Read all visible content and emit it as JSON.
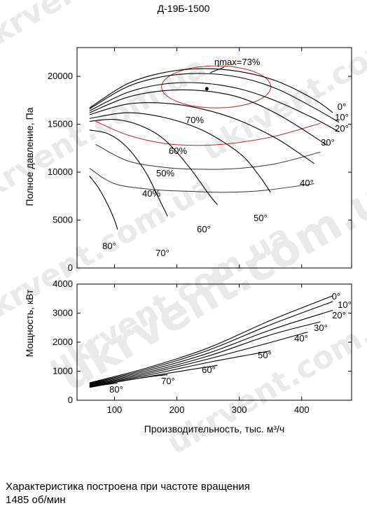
{
  "title": "Д-19Б-1500",
  "watermark": "ukrvent.com.ua",
  "footnote": {
    "line1": "Характеристика построена при частоте вращения",
    "line2": "1485 об/мин"
  },
  "chart_data": [
    {
      "type": "line",
      "panel": "pressure",
      "xlabel": "",
      "ylabel": "Полное давление, Па",
      "xlim": [
        40,
        480
      ],
      "ylim": [
        0,
        23000
      ],
      "yticks": [
        0,
        5000,
        10000,
        15000,
        20000
      ],
      "efficiency_label": "ηmax=73%",
      "efficiency_point": {
        "x": 248,
        "y": 18700
      },
      "series": [
        {
          "name": "0°",
          "x": [
            60,
            120,
            180,
            240,
            300,
            360,
            420,
            450
          ],
          "y": [
            16700,
            19200,
            20400,
            20800,
            20500,
            19500,
            17600,
            16200
          ]
        },
        {
          "name": "10°",
          "x": [
            60,
            120,
            180,
            240,
            300,
            360,
            420,
            460
          ],
          "y": [
            16600,
            18900,
            20000,
            20300,
            19900,
            18700,
            16700,
            15200
          ]
        },
        {
          "name": "20°",
          "x": [
            60,
            120,
            180,
            240,
            300,
            360,
            420,
            460
          ],
          "y": [
            16400,
            18300,
            19200,
            19300,
            18700,
            17400,
            15600,
            14200
          ]
        },
        {
          "name": "30°",
          "x": [
            60,
            120,
            180,
            240,
            300,
            360,
            420,
            440
          ],
          "y": [
            16200,
            17800,
            18500,
            18500,
            17800,
            16100,
            13700,
            12800
          ]
        },
        {
          "name": "40°",
          "x": [
            60,
            120,
            180,
            240,
            300,
            360,
            400,
            420
          ],
          "y": [
            16000,
            17100,
            17200,
            16600,
            15400,
            13500,
            11800,
            10900
          ]
        },
        {
          "name": "50°",
          "x": [
            60,
            120,
            180,
            240,
            300,
            330,
            350
          ],
          "y": [
            15600,
            16200,
            15700,
            14400,
            12000,
            9800,
            7900
          ]
        },
        {
          "name": "60°",
          "x": [
            60,
            100,
            140,
            180,
            220,
            250,
            265
          ],
          "y": [
            15300,
            15500,
            14900,
            13400,
            10500,
            7800,
            6600
          ]
        },
        {
          "name": "70°",
          "x": [
            60,
            90,
            120,
            150,
            170,
            185
          ],
          "y": [
            14400,
            14000,
            12600,
            10000,
            7400,
            5400
          ]
        },
        {
          "name": "80°",
          "x": [
            60,
            75,
            90,
            100,
            105
          ],
          "y": [
            9600,
            8300,
            6500,
            5000,
            4000
          ]
        }
      ],
      "efficiency_contours": [
        "70%",
        "60%",
        "50%",
        "40%"
      ],
      "efficiency_curves": [
        {
          "name": "40%",
          "x": [
            60,
            100,
            160,
            220,
            280,
            340,
            420
          ],
          "y": [
            10400,
            8800,
            8200,
            8000,
            7900,
            8100,
            8800
          ]
        },
        {
          "name": "50%",
          "x": [
            70,
            120,
            180,
            240,
            300,
            360,
            430
          ],
          "y": [
            12900,
            11200,
            10500,
            10300,
            10400,
            10900,
            12100
          ]
        },
        {
          "name": "60%",
          "x": [
            70,
            120,
            180,
            240,
            300,
            360,
            430
          ],
          "y": [
            15300,
            13900,
            13000,
            12800,
            13100,
            13800,
            15100
          ]
        }
      ]
    },
    {
      "type": "line",
      "panel": "power",
      "xlabel": "Производительность, тыс. м³/ч",
      "ylabel": "Мощность, кВт",
      "xlim": [
        40,
        480
      ],
      "ylim": [
        0,
        4000
      ],
      "xticks": [
        100,
        200,
        300,
        400
      ],
      "yticks": [
        0,
        1000,
        2000,
        3000,
        4000
      ],
      "series": [
        {
          "name": "0°",
          "x": [
            60,
            150,
            250,
            350,
            450
          ],
          "y": [
            600,
            1100,
            1800,
            2750,
            3600
          ]
        },
        {
          "name": "10°",
          "x": [
            60,
            150,
            250,
            350,
            450
          ],
          "y": [
            580,
            1050,
            1720,
            2600,
            3400
          ]
        },
        {
          "name": "20°",
          "x": [
            60,
            150,
            250,
            350,
            450
          ],
          "y": [
            560,
            1000,
            1620,
            2420,
            3100
          ]
        },
        {
          "name": "30°",
          "x": [
            60,
            150,
            250,
            350,
            430
          ],
          "y": [
            540,
            950,
            1520,
            2250,
            2700
          ]
        },
        {
          "name": "40°",
          "x": [
            60,
            150,
            250,
            350,
            410
          ],
          "y": [
            520,
            900,
            1420,
            1990,
            2350
          ]
        },
        {
          "name": "50°",
          "x": [
            60,
            150,
            250,
            330,
            350
          ],
          "y": [
            500,
            850,
            1300,
            1620,
            1700
          ]
        },
        {
          "name": "60°",
          "x": [
            60,
            150,
            220,
            265
          ],
          "y": [
            480,
            800,
            1050,
            1200
          ]
        },
        {
          "name": "70°",
          "x": [
            60,
            120,
            160,
            185
          ],
          "y": [
            460,
            690,
            820,
            880
          ]
        },
        {
          "name": "80°",
          "x": [
            60,
            80,
            100,
            105
          ],
          "y": [
            440,
            520,
            580,
            600
          ]
        }
      ]
    }
  ]
}
